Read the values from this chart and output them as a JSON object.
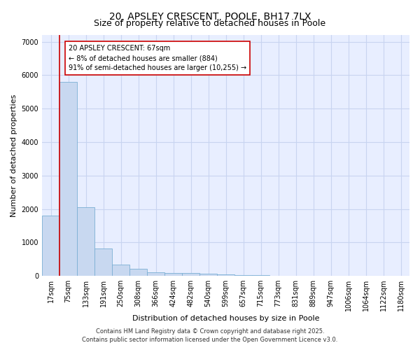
{
  "title1": "20, APSLEY CRESCENT, POOLE, BH17 7LX",
  "title2": "Size of property relative to detached houses in Poole",
  "xlabel": "Distribution of detached houses by size in Poole",
  "ylabel": "Number of detached properties",
  "categories": [
    "17sqm",
    "75sqm",
    "133sqm",
    "191sqm",
    "250sqm",
    "308sqm",
    "366sqm",
    "424sqm",
    "482sqm",
    "540sqm",
    "599sqm",
    "657sqm",
    "715sqm",
    "773sqm",
    "831sqm",
    "889sqm",
    "947sqm",
    "1006sqm",
    "1064sqm",
    "1122sqm",
    "1180sqm"
  ],
  "values": [
    1800,
    5800,
    2050,
    820,
    340,
    220,
    110,
    90,
    75,
    60,
    35,
    25,
    20,
    0,
    0,
    0,
    0,
    0,
    0,
    0,
    0
  ],
  "bar_color": "#c8d8f0",
  "bar_edge_color": "#7bafd4",
  "red_line_color": "#cc0000",
  "annotation_line1": "20 APSLEY CRESCENT: 67sqm",
  "annotation_line2": "← 8% of detached houses are smaller (884)",
  "annotation_line3": "91% of semi-detached houses are larger (10,255) →",
  "annotation_box_color": "#ffffff",
  "annotation_box_edge": "#cc0000",
  "ylim": [
    0,
    7200
  ],
  "yticks": [
    0,
    1000,
    2000,
    3000,
    4000,
    5000,
    6000,
    7000
  ],
  "footer1": "Contains HM Land Registry data © Crown copyright and database right 2025.",
  "footer2": "Contains public sector information licensed under the Open Government Licence v3.0.",
  "bg_color": "#ffffff",
  "plot_bg_color": "#e8eeff",
  "grid_color": "#c8d4f0",
  "title_fontsize": 10,
  "subtitle_fontsize": 9,
  "axis_label_fontsize": 8,
  "tick_fontsize": 7,
  "annotation_fontsize": 7,
  "footer_fontsize": 6
}
